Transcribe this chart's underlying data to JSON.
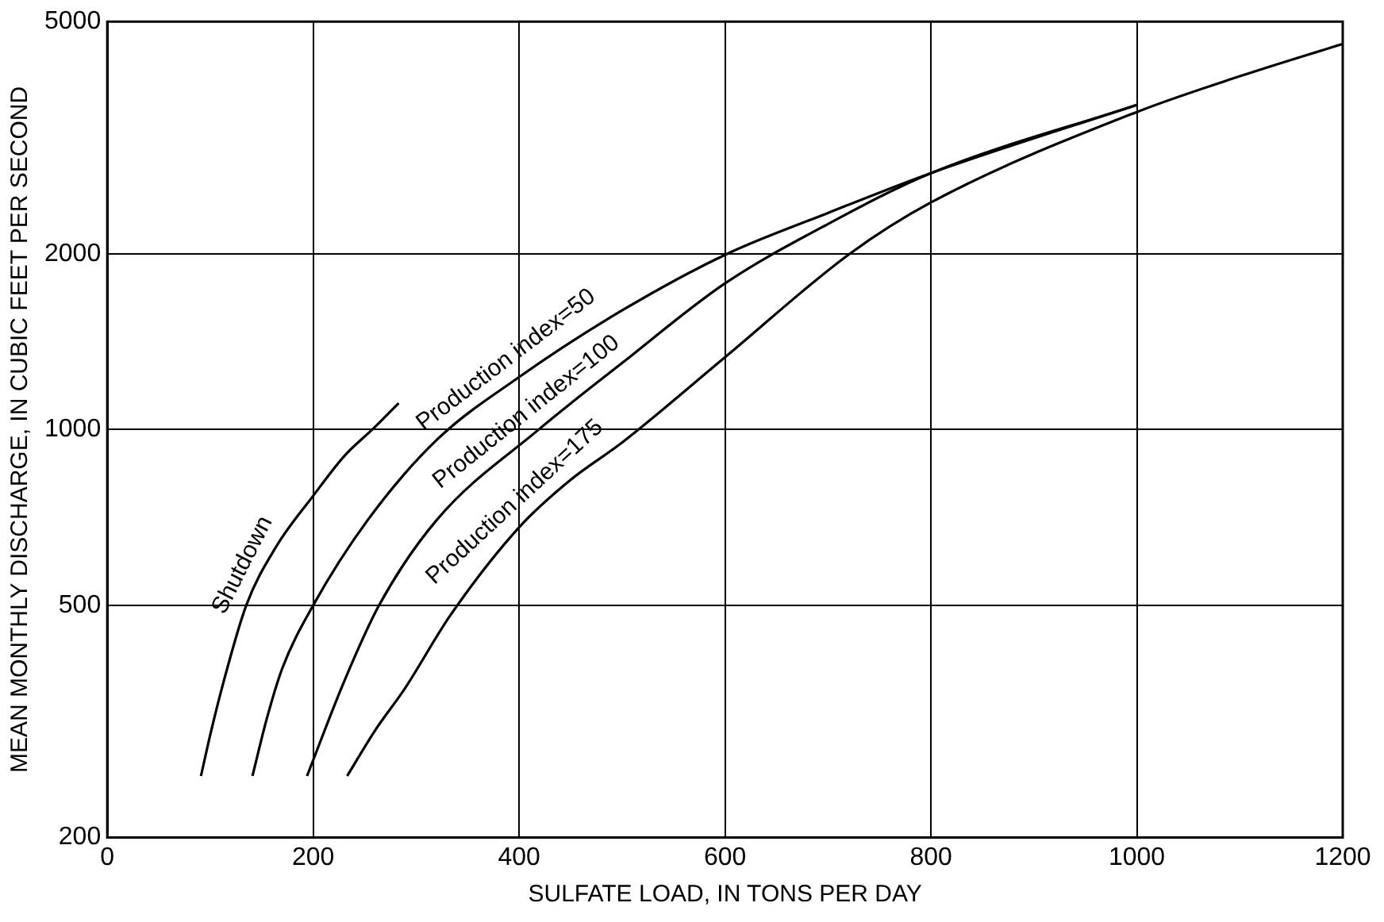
{
  "chart_data": {
    "type": "line",
    "xlabel": "SULFATE LOAD, IN TONS PER DAY",
    "ylabel": "MEAN MONTHLY DISCHARGE, IN CUBIC FEET PER SECOND",
    "log": "y",
    "grid": true,
    "legend": false,
    "marker": "none",
    "line_style": "solid",
    "xlim": [
      0,
      1200
    ],
    "xticks": [
      0,
      200,
      400,
      600,
      800,
      1000,
      1200
    ],
    "ylim": [
      200,
      5000
    ],
    "yticks": [
      200,
      500,
      1000,
      2000,
      5000
    ],
    "series": [
      {
        "name": "Shutdown",
        "color": "#000000",
        "x": [
          91,
          100,
          113,
          135,
          164,
          200,
          230,
          260,
          283
        ],
        "values": [
          255,
          300,
          370,
          500,
          630,
          770,
          900,
          1010,
          1110
        ]
      },
      {
        "name": "Production index=50",
        "color": "#000000",
        "x": [
          141,
          155,
          170,
          200,
          253,
          320,
          400,
          500,
          602,
          700,
          800,
          1000
        ],
        "values": [
          255,
          320,
          390,
          500,
          700,
          960,
          1230,
          1600,
          2000,
          2350,
          2750,
          3600
        ]
      },
      {
        "name": "Production index=100",
        "color": "#000000",
        "x": [
          194,
          230,
          264,
          320,
          419,
          500,
          600,
          700,
          800,
          1000
        ],
        "values": [
          255,
          370,
          500,
          700,
          1000,
          1300,
          1780,
          2250,
          2750,
          3600
        ]
      },
      {
        "name": "Production index=175",
        "color": "#000000",
        "x": [
          233,
          260,
          289,
          333,
          400,
          450,
          500,
          600,
          721,
          800,
          1000,
          1100,
          1200
        ],
        "values": [
          255,
          305,
          360,
          480,
          680,
          820,
          950,
          1330,
          2000,
          2450,
          3500,
          4030,
          4580
        ]
      }
    ]
  }
}
